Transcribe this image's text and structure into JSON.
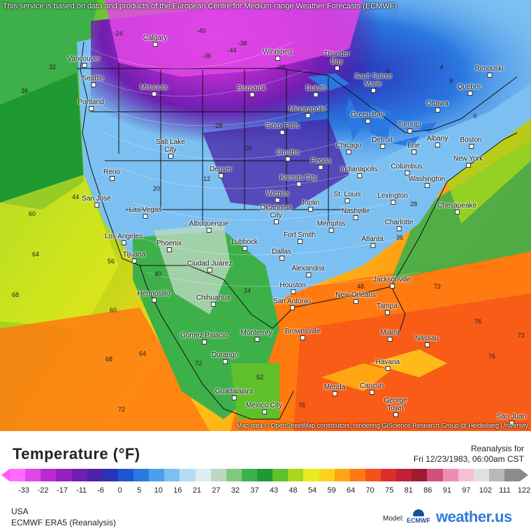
{
  "map": {
    "top_note": "This service is based on data and products of the European Centre for Medium-range Weather Forecasts (ECMWF)",
    "attribution": "Map data © OpenStreetMap contributors, rendering GIScience Research Group @ Heidelberg University",
    "cities": [
      {
        "name": "Calgary"
      },
      {
        "name": "Winnipeg"
      },
      {
        "name": "Vancouver"
      },
      {
        "name": "Thunder Bay"
      },
      {
        "name": "Seattle"
      },
      {
        "name": "Missoula"
      },
      {
        "name": "Bismarck"
      },
      {
        "name": "Duluth"
      },
      {
        "name": "Sault Sainte Marie"
      },
      {
        "name": "Rimouski"
      },
      {
        "name": "Quebec"
      },
      {
        "name": "Portland"
      },
      {
        "name": "Minneapolis"
      },
      {
        "name": "Ottawa"
      },
      {
        "name": "Green Bay"
      },
      {
        "name": "Toronto"
      },
      {
        "name": "Sioux Falls"
      },
      {
        "name": "Albany"
      },
      {
        "name": "Detroit"
      },
      {
        "name": "Boston"
      },
      {
        "name": "Erie"
      },
      {
        "name": "Chicago"
      },
      {
        "name": "Omaha"
      },
      {
        "name": "Salt Lake City"
      },
      {
        "name": "New York"
      },
      {
        "name": "Peoria"
      },
      {
        "name": "Denver"
      },
      {
        "name": "Indianapolis"
      },
      {
        "name": "Columbus"
      },
      {
        "name": "Reno"
      },
      {
        "name": "Kansas City"
      },
      {
        "name": "Washington"
      },
      {
        "name": "Wichita"
      },
      {
        "name": "St. Louis"
      },
      {
        "name": "Lexington"
      },
      {
        "name": "San José"
      },
      {
        "name": "Joplin"
      },
      {
        "name": "Las Vegas"
      },
      {
        "name": "Oklahoma City"
      },
      {
        "name": "Nashville"
      },
      {
        "name": "Chesapeake"
      },
      {
        "name": "Albuquerque"
      },
      {
        "name": "Charlotte"
      },
      {
        "name": "Los Angeles"
      },
      {
        "name": "Memphis"
      },
      {
        "name": "Fort Smith"
      },
      {
        "name": "Lubbock"
      },
      {
        "name": "Phoenix"
      },
      {
        "name": "Atlanta"
      },
      {
        "name": "Dallas"
      },
      {
        "name": "Tijuana"
      },
      {
        "name": "Ciudad Juárez"
      },
      {
        "name": "Alexandria"
      },
      {
        "name": "Jacksonville"
      },
      {
        "name": "Houston"
      },
      {
        "name": "Hermosillo"
      },
      {
        "name": "Chihuahua"
      },
      {
        "name": "New Orleans"
      },
      {
        "name": "San Antonio"
      },
      {
        "name": "Tampa"
      },
      {
        "name": "Brownsville"
      },
      {
        "name": "Miami"
      },
      {
        "name": "Gomez Palacio"
      },
      {
        "name": "Monterrey"
      },
      {
        "name": "Nassau"
      },
      {
        "name": "Durango"
      },
      {
        "name": "Havana"
      },
      {
        "name": "Mérida"
      },
      {
        "name": "Cancún"
      },
      {
        "name": "Guadalajara"
      },
      {
        "name": "George Town"
      },
      {
        "name": "Mexico City"
      },
      {
        "name": "San Juan"
      }
    ],
    "values": [
      "-40",
      "-44",
      "-36",
      "-38",
      "-24",
      "-26",
      "32",
      "36",
      "44",
      "60",
      "64",
      "68",
      "56",
      "60",
      "64",
      "68",
      "72",
      "72",
      "76",
      "72",
      "72",
      "76",
      "76",
      "12",
      "20",
      "28",
      "36",
      "48",
      "52",
      "24",
      "40",
      "8",
      "4",
      "0",
      "-8",
      "-20",
      "-28"
    ]
  },
  "legend": {
    "title": "Temperature (°F)",
    "reanalysis_label": "Reanalysis for",
    "valid_time": "Fri 12/23/1983, 06:00am CST",
    "ticks": [
      "-33",
      "-22",
      "-17",
      "-11",
      "-6",
      "0",
      "5",
      "10",
      "16",
      "21",
      "27",
      "32",
      "37",
      "43",
      "48",
      "54",
      "59",
      "64",
      "70",
      "75",
      "81",
      "86",
      "91",
      "97",
      "102",
      "111",
      "122"
    ],
    "colors": [
      "#ff6cff",
      "#e046e6",
      "#b92ad0",
      "#9422bd",
      "#6f1fb0",
      "#4a22a6",
      "#2a32b8",
      "#1f55d0",
      "#2a78e0",
      "#4aa0ee",
      "#7cc0f2",
      "#b4dcf6",
      "#dcecf2",
      "#bcd8c0",
      "#7fc87f",
      "#3eb04a",
      "#1f9a32",
      "#5ec02a",
      "#a6d81c",
      "#e8ec1c",
      "#ffd21a",
      "#ffa514",
      "#ff7a10",
      "#f5501a",
      "#e02c2a",
      "#c41e3a",
      "#a01a2e",
      "#d24f7c",
      "#f08cb4",
      "#f6c0d6",
      "#e0e0e0",
      "#b8b8b8",
      "#8c8c8c"
    ],
    "region": "USA",
    "model_name": "ECMWF ERA5 (Reanalysis)",
    "model_label": "Model:",
    "ecmwf_logo": "ECMWF",
    "brand_logo": "weather.us"
  }
}
